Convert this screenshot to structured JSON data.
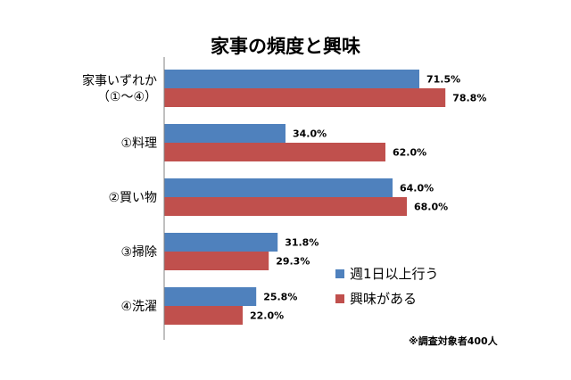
{
  "chart_data": {
    "type": "bar",
    "orientation": "horizontal",
    "title": "家事の頻度と興味",
    "categories": [
      "家事いずれか\n（①～④）",
      "①料理",
      "②買い物",
      "③掃除",
      "④洗濯"
    ],
    "series": [
      {
        "name": "週1日以上行う",
        "values": [
          71.5,
          34.0,
          64.0,
          31.8,
          25.8
        ],
        "labels": [
          "71.5%",
          "34.0%",
          "64.0%",
          "31.8%",
          "25.8%"
        ],
        "color": "#4f81bd"
      },
      {
        "name": "興味がある",
        "values": [
          78.8,
          62.0,
          68.0,
          29.3,
          22.0
        ],
        "labels": [
          "78.8%",
          "62.0%",
          "68.0%",
          "29.3%",
          "22.0%"
        ],
        "color": "#c0504d"
      }
    ],
    "xlim": [
      0,
      100
    ],
    "grid": false,
    "legend_position": "right",
    "footnote": "※調査対象者400人"
  }
}
